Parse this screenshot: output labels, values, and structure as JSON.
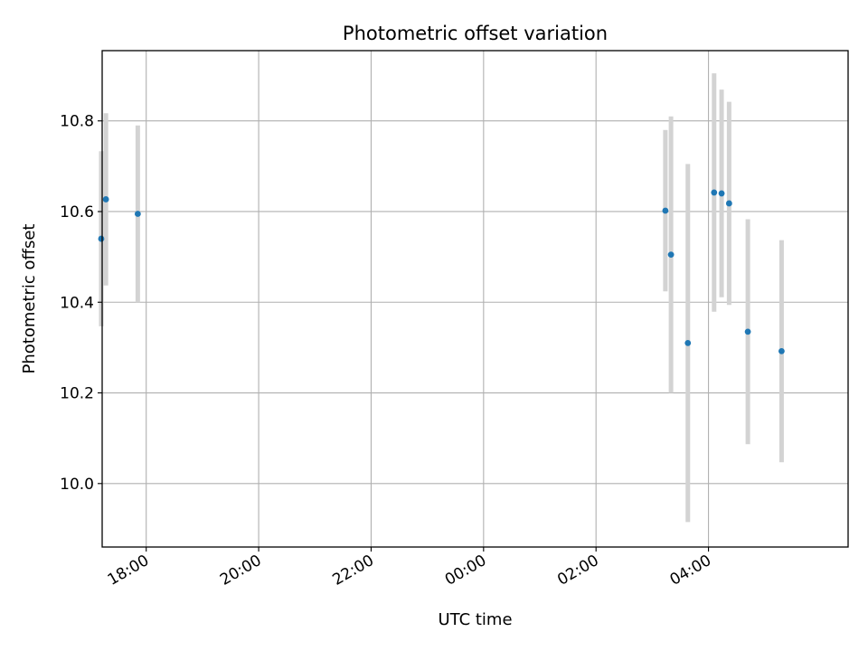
{
  "chart_data": {
    "type": "scatter",
    "title": "Photometric offset variation",
    "xlabel": "UTC time",
    "ylabel": "Photometric offset",
    "x_axis": {
      "kind": "time",
      "range": [
        "17:13",
        "06:29"
      ],
      "tick_labels": [
        "18:00",
        "20:00",
        "22:00",
        "00:00",
        "02:00",
        "04:00"
      ]
    },
    "y_axis": {
      "range": [
        9.86,
        10.955
      ],
      "tick_values": [
        10.0,
        10.2,
        10.4,
        10.6,
        10.8
      ],
      "tick_labels": [
        "10.0",
        "10.2",
        "10.4",
        "10.6",
        "10.8"
      ]
    },
    "grid": true,
    "marker_color": "#1f77b4",
    "errorbar_color": "#d3d3d3",
    "points": [
      {
        "x": "17:12",
        "y": 10.54,
        "err": 0.193
      },
      {
        "x": "17:17",
        "y": 10.627,
        "err": 0.19
      },
      {
        "x": "17:51",
        "y": 10.595,
        "err": 0.195
      },
      {
        "x": "03:14",
        "y": 10.602,
        "err": 0.178
      },
      {
        "x": "03:20",
        "y": 10.505,
        "err": 0.305
      },
      {
        "x": "03:38",
        "y": 10.31,
        "err": 0.395
      },
      {
        "x": "04:06",
        "y": 10.642,
        "err": 0.263
      },
      {
        "x": "04:14",
        "y": 10.64,
        "err": 0.229
      },
      {
        "x": "04:22",
        "y": 10.618,
        "err": 0.224
      },
      {
        "x": "04:42",
        "y": 10.335,
        "err": 0.248
      },
      {
        "x": "05:18",
        "y": 10.292,
        "err": 0.245
      }
    ]
  }
}
